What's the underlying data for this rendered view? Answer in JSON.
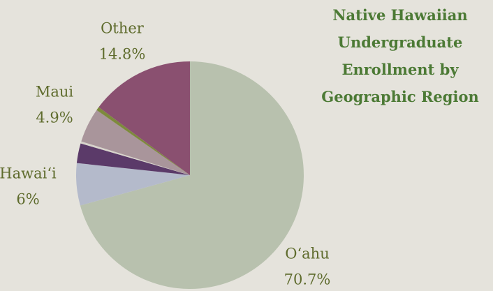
{
  "chart_data": {
    "type": "pie",
    "title": "Native Hawaiian Undergraduate Enrollment by Geographic Region",
    "categories": [
      "O‘ahu",
      "Hawai‘i",
      null,
      null,
      "Maui",
      null,
      "Other"
    ],
    "values": [
      70.7,
      6,
      2.8,
      0.3,
      4.9,
      0.5,
      14.8
    ],
    "value_labels": [
      "70.7%",
      "6%",
      null,
      null,
      "4.9%",
      null,
      "14.8%"
    ],
    "colors": [
      "#b8c1ae",
      "#b4bacb",
      "#5b3a69",
      "#d8d4cc",
      "#a9959b",
      "#7d8a3c",
      "#8a5070"
    ]
  }
}
